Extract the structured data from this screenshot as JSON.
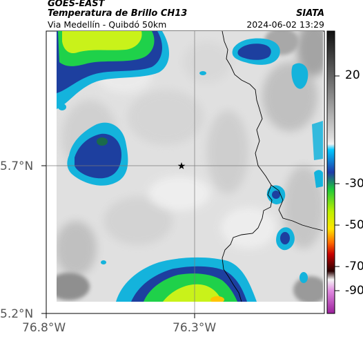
{
  "header": {
    "satellite": "GOES-EAST",
    "product": "Temperatura de Brillo CH13",
    "route": "Via Medellín - Quibdó 50km",
    "organization": "SIATA",
    "datetime": "2024-06-02 13:29"
  },
  "map": {
    "lat_ticks": [
      "5.7°N",
      "5.2°N"
    ],
    "lon_ticks": [
      "76.8°W",
      "76.3°W"
    ],
    "marker": "star"
  },
  "colorbar": {
    "labels": [
      "20",
      "-30",
      "-50",
      "-70",
      "-90"
    ],
    "ramp": [
      "#111111",
      "#555555",
      "#999999",
      "#cccccc",
      "#e8e8e8",
      "#00bfff",
      "#1f46b0",
      "#16d64b",
      "#b6ff00",
      "#fff000",
      "#ff7a00",
      "#d40000",
      "#4a0000",
      "#ffffff",
      "#d97ad9",
      "#a020a0"
    ]
  },
  "colors": {
    "cloud_light": "#e2e2e2",
    "cloud_deep_blue": "#1a3f9e",
    "cloud_cyan": "#12b6d8",
    "cloud_green": "#1fd14a",
    "cloud_yellow": "#d9f21a",
    "border_line": "#000000"
  }
}
